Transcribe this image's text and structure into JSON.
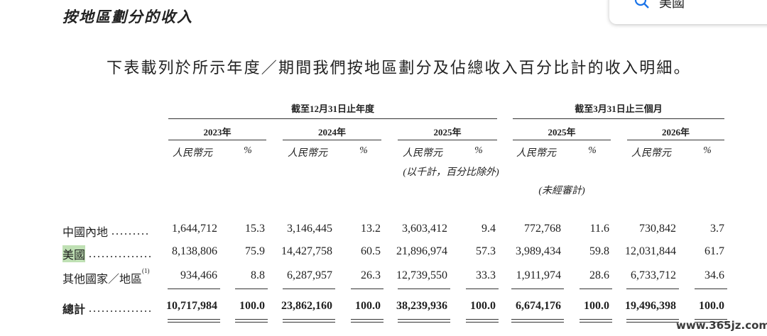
{
  "section_title": "按地區劃分的收入",
  "search": {
    "query": "美國"
  },
  "intro": "下表載列於所示年度／期間我們按地區劃分及佔總收入百分比計的收入明細。",
  "table": {
    "group_headers": [
      "截至12月31日止年度",
      "截至3月31日止三個月"
    ],
    "year_headers": [
      "2023年",
      "2024年",
      "2025年",
      "2025年",
      "2026年"
    ],
    "unit_headers": [
      [
        "人民幣元",
        "%"
      ],
      [
        "人民幣元",
        "%"
      ],
      [
        "人民幣元",
        "%"
      ],
      [
        "人民幣元",
        "%"
      ],
      [
        "人民幣元",
        "%"
      ]
    ],
    "units_note": "(以千計，百分比除外)",
    "unaudited_note": "(未經審計)",
    "rows": [
      {
        "label": "中國內地",
        "cells": [
          "1,644,712",
          "15.3",
          "3,146,445",
          "13.2",
          "3,603,412",
          "9.4",
          "772,768",
          "11.6",
          "730,842",
          "3.7"
        ]
      },
      {
        "label": "美國",
        "cells": [
          "8,138,806",
          "75.9",
          "14,427,758",
          "60.5",
          "21,896,974",
          "57.3",
          "3,989,434",
          "59.8",
          "12,031,844",
          "61.7"
        ]
      },
      {
        "label": "其他國家／地區",
        "note_ref": "(1)",
        "cells": [
          "934,466",
          "8.8",
          "6,287,957",
          "26.3",
          "12,739,550",
          "33.3",
          "1,911,974",
          "28.6",
          "6,733,712",
          "34.6"
        ]
      },
      {
        "label": "總計",
        "cells": [
          "10,717,984",
          "100.0",
          "23,862,160",
          "100.0",
          "38,239,936",
          "100.0",
          "6,674,176",
          "100.0",
          "19,496,398",
          "100.0"
        ]
      }
    ]
  },
  "watermark": "www.365jz.com"
}
